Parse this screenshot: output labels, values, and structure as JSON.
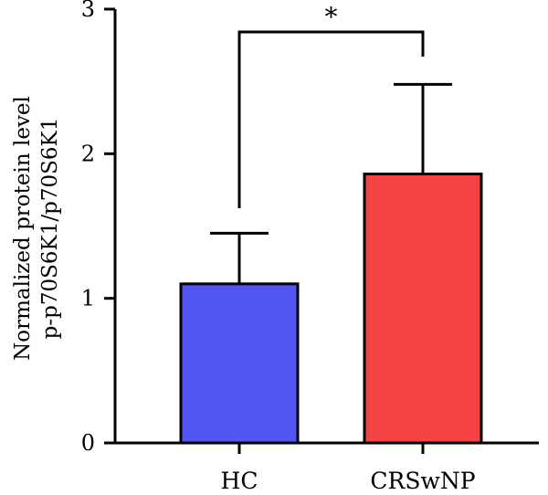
{
  "chart_data": {
    "type": "bar",
    "categories": [
      "HC",
      "CRSwNP"
    ],
    "values": [
      1.1,
      1.86
    ],
    "errors": [
      0.35,
      0.62
    ],
    "colors": [
      "#5356F2",
      "#F54343"
    ],
    "ylim": [
      0,
      3
    ],
    "yticks": [
      0,
      1,
      2,
      3
    ],
    "ylabel_lines": [
      "Normalized protein level",
      "p-p70S6K1/p70S6K1"
    ],
    "significance": {
      "label": "*",
      "between": [
        "HC",
        "CRSwNP"
      ]
    },
    "grid": false,
    "legend": "none"
  }
}
